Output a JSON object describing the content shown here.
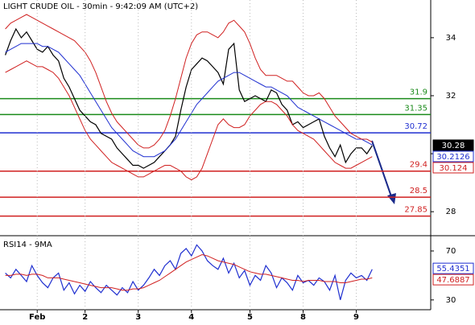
{
  "chart_data": [
    {
      "type": "line",
      "title": "LIGHT CRUDE OIL - 30min - 9:42:09 AM (UTC+2)",
      "x": [
        0,
        1,
        2,
        3,
        4,
        5,
        6,
        7,
        8,
        9,
        10,
        11,
        12,
        13,
        14,
        15,
        16,
        17,
        18,
        19,
        20,
        21,
        22,
        23,
        24,
        25,
        26,
        27,
        28,
        29,
        30,
        31,
        32,
        33,
        34,
        35,
        36,
        37,
        38,
        39,
        40,
        41,
        42,
        43,
        44,
        45,
        46,
        47,
        48,
        49,
        50,
        51,
        52,
        53,
        54,
        55,
        56,
        57,
        58,
        59,
        60,
        61,
        62,
        63,
        64,
        65,
        66,
        67,
        68,
        69
      ],
      "xlim": [
        -1,
        80
      ],
      "ylim": [
        27.2,
        35.3
      ],
      "yticks": [
        28,
        30,
        32,
        34
      ],
      "series": [
        {
          "color": "#000000",
          "values": [
            33.4,
            33.9,
            34.3,
            34.0,
            34.2,
            33.9,
            33.6,
            33.5,
            33.7,
            33.4,
            33.2,
            32.6,
            32.3,
            31.9,
            31.5,
            31.3,
            31.1,
            31.0,
            30.7,
            30.6,
            30.5,
            30.2,
            30.0,
            29.8,
            29.6,
            29.6,
            29.5,
            29.6,
            29.7,
            29.9,
            30.1,
            30.3,
            30.6,
            31.5,
            32.3,
            32.9,
            33.1,
            33.3,
            33.2,
            33.0,
            32.8,
            32.4,
            33.6,
            33.8,
            32.2,
            31.8,
            31.9,
            32.0,
            31.9,
            31.8,
            32.2,
            32.1,
            31.7,
            31.5,
            31.0,
            31.1,
            30.9,
            31.0,
            31.1,
            31.2,
            30.6,
            30.2,
            29.9,
            30.3,
            29.7,
            30.0,
            30.2,
            30.2,
            30.0,
            30.28
          ]
        },
        {
          "color": "#1f2fd0",
          "values": [
            33.5,
            33.6,
            33.7,
            33.8,
            33.8,
            33.8,
            33.8,
            33.7,
            33.7,
            33.6,
            33.5,
            33.3,
            33.1,
            32.9,
            32.7,
            32.4,
            32.1,
            31.8,
            31.5,
            31.2,
            30.9,
            30.7,
            30.5,
            30.3,
            30.1,
            30.0,
            29.9,
            29.9,
            29.9,
            30.0,
            30.1,
            30.3,
            30.5,
            30.8,
            31.1,
            31.4,
            31.7,
            31.9,
            32.1,
            32.3,
            32.5,
            32.6,
            32.7,
            32.8,
            32.8,
            32.7,
            32.6,
            32.5,
            32.4,
            32.3,
            32.3,
            32.2,
            32.1,
            32.0,
            31.8,
            31.6,
            31.5,
            31.4,
            31.3,
            31.2,
            31.1,
            31.0,
            30.9,
            30.8,
            30.7,
            30.6,
            30.5,
            30.5,
            30.4,
            30.3
          ]
        },
        {
          "color": "#d02020",
          "values": [
            34.3,
            34.5,
            34.6,
            34.7,
            34.8,
            34.7,
            34.6,
            34.5,
            34.4,
            34.3,
            34.2,
            34.1,
            34.0,
            33.9,
            33.7,
            33.5,
            33.2,
            32.8,
            32.3,
            31.8,
            31.4,
            31.1,
            30.9,
            30.7,
            30.5,
            30.3,
            30.2,
            30.2,
            30.3,
            30.5,
            30.8,
            31.3,
            31.9,
            32.6,
            33.3,
            33.8,
            34.1,
            34.2,
            34.2,
            34.1,
            34.0,
            34.2,
            34.5,
            34.6,
            34.4,
            34.2,
            33.8,
            33.3,
            32.9,
            32.7,
            32.7,
            32.7,
            32.6,
            32.5,
            32.5,
            32.3,
            32.1,
            32.0,
            32.0,
            32.1,
            31.9,
            31.6,
            31.3,
            31.1,
            30.9,
            30.7,
            30.6,
            30.5,
            30.5,
            30.4
          ]
        },
        {
          "color": "#d02020",
          "values": [
            32.8,
            32.9,
            33.0,
            33.1,
            33.2,
            33.1,
            33.0,
            33.0,
            32.9,
            32.8,
            32.6,
            32.3,
            32.0,
            31.6,
            31.2,
            30.8,
            30.5,
            30.3,
            30.1,
            29.9,
            29.7,
            29.6,
            29.5,
            29.4,
            29.3,
            29.2,
            29.2,
            29.3,
            29.4,
            29.5,
            29.6,
            29.6,
            29.5,
            29.4,
            29.2,
            29.1,
            29.2,
            29.5,
            30.0,
            30.5,
            31.0,
            31.2,
            31.0,
            30.9,
            30.9,
            31.0,
            31.3,
            31.5,
            31.7,
            31.8,
            31.8,
            31.7,
            31.5,
            31.3,
            31.0,
            30.8,
            30.7,
            30.6,
            30.5,
            30.3,
            30.1,
            29.9,
            29.7,
            29.6,
            29.5,
            29.5,
            29.6,
            29.7,
            29.8,
            29.9
          ]
        }
      ],
      "levels": [
        {
          "value": 31.9,
          "color": "#1a8a1a"
        },
        {
          "value": 31.35,
          "color": "#1a8a1a"
        },
        {
          "value": 30.72,
          "color": "#1f2fd0"
        },
        {
          "value": 29.4,
          "color": "#d02020"
        },
        {
          "value": 28.5,
          "color": "#d02020"
        },
        {
          "value": 27.85,
          "color": "#d02020"
        }
      ],
      "price_labels": [
        {
          "value": 30.28,
          "color": "#000000"
        },
        {
          "value": 30.2126,
          "color": "#1f2fd0"
        },
        {
          "value": 30.124,
          "color": "#d02020"
        }
      ]
    },
    {
      "type": "line",
      "title": "RSI14 - 9MA",
      "x": [
        0,
        1,
        2,
        3,
        4,
        5,
        6,
        7,
        8,
        9,
        10,
        11,
        12,
        13,
        14,
        15,
        16,
        17,
        18,
        19,
        20,
        21,
        22,
        23,
        24,
        25,
        26,
        27,
        28,
        29,
        30,
        31,
        32,
        33,
        34,
        35,
        36,
        37,
        38,
        39,
        40,
        41,
        42,
        43,
        44,
        45,
        46,
        47,
        48,
        49,
        50,
        51,
        52,
        53,
        54,
        55,
        56,
        57,
        58,
        59,
        60,
        61,
        62,
        63,
        64,
        65,
        66,
        67,
        68,
        69
      ],
      "xlim": [
        -1,
        80
      ],
      "ylim": [
        22,
        80.5
      ],
      "yticks": [
        30,
        70
      ],
      "xticks": [
        {
          "value": 6,
          "label": "Feb"
        },
        {
          "value": 15,
          "label": "2"
        },
        {
          "value": 25,
          "label": "3"
        },
        {
          "value": 35,
          "label": "4"
        },
        {
          "value": 46,
          "label": "5"
        },
        {
          "value": 56,
          "label": "8"
        },
        {
          "value": 66,
          "label": "9"
        }
      ],
      "series": [
        {
          "color": "#1f2fd0",
          "values": [
            52,
            48,
            55,
            50,
            45,
            58,
            50,
            44,
            40,
            48,
            52,
            38,
            44,
            35,
            42,
            37,
            45,
            40,
            36,
            42,
            38,
            34,
            40,
            36,
            45,
            38,
            42,
            48,
            55,
            50,
            58,
            62,
            55,
            68,
            72,
            66,
            75,
            70,
            62,
            58,
            55,
            64,
            52,
            60,
            48,
            54,
            42,
            50,
            46,
            58,
            52,
            40,
            48,
            44,
            38,
            50,
            44,
            46,
            42,
            48,
            45,
            38,
            50,
            30,
            46,
            52,
            48,
            50,
            46,
            55
          ]
        },
        {
          "color": "#d02020",
          "values": [
            50,
            50,
            51,
            51,
            50,
            51,
            51,
            50,
            48,
            48,
            48,
            47,
            46,
            45,
            44,
            43,
            42,
            41,
            40,
            40,
            40,
            39,
            38,
            38,
            39,
            39,
            40,
            42,
            44,
            46,
            49,
            52,
            55,
            58,
            61,
            63,
            65,
            67,
            66,
            64,
            62,
            61,
            60,
            59,
            57,
            55,
            53,
            52,
            51,
            51,
            50,
            49,
            48,
            47,
            46,
            46,
            45,
            46,
            46,
            46,
            45,
            45,
            45,
            44,
            44,
            45,
            46,
            47,
            47,
            48
          ]
        }
      ],
      "price_labels": [
        {
          "value": 55.4351,
          "color": "#1f2fd0"
        },
        {
          "value": 47.6887,
          "color": "#d02020"
        }
      ]
    }
  ]
}
